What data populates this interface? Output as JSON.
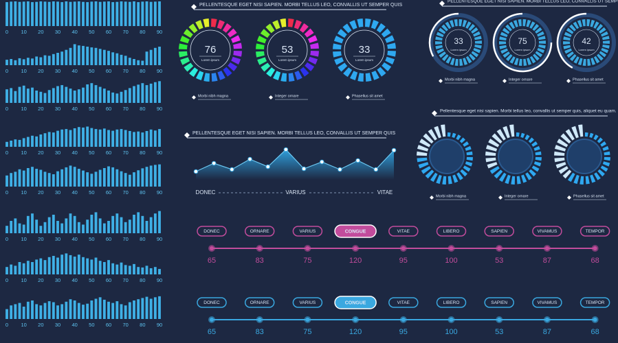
{
  "bar_charts": {
    "color": "#3fb0e6",
    "xlim": [
      0,
      90
    ],
    "ylim": [
      0,
      100
    ],
    "xticks": [
      0,
      10,
      20,
      30,
      40,
      50,
      60,
      70,
      80,
      90
    ],
    "x": [
      0,
      2.5,
      5,
      7.5,
      10,
      12.5,
      15,
      17.5,
      20,
      22.5,
      25,
      27.5,
      30,
      32.5,
      35,
      37.5,
      40,
      42.5,
      45,
      47.5,
      50,
      52.5,
      55,
      57.5,
      60,
      62.5,
      65,
      67.5,
      70,
      72.5,
      75,
      77.5,
      80,
      82.5,
      85,
      87.5,
      90
    ],
    "charts": [
      {
        "values": [
          97,
          99,
          100,
          98,
          99,
          100,
          97,
          98,
          100,
          99,
          98,
          100,
          99,
          97,
          100,
          98,
          99,
          100,
          98,
          97,
          99,
          100,
          98,
          99,
          100,
          97,
          98,
          100,
          99,
          98,
          100,
          97,
          99,
          100,
          98,
          99,
          100
        ]
      },
      {
        "values": [
          22,
          25,
          20,
          28,
          24,
          30,
          27,
          35,
          32,
          40,
          38,
          45,
          50,
          55,
          62,
          70,
          85,
          80,
          78,
          75,
          72,
          70,
          66,
          62,
          58,
          52,
          48,
          42,
          38,
          30,
          25,
          20,
          18,
          55,
          62,
          70,
          75
        ]
      },
      {
        "values": [
          55,
          60,
          48,
          65,
          70,
          58,
          62,
          50,
          45,
          40,
          52,
          60,
          68,
          72,
          65,
          58,
          50,
          55,
          62,
          75,
          80,
          72,
          65,
          58,
          50,
          42,
          38,
          45,
          52,
          60,
          68,
          74,
          80,
          72,
          78,
          84,
          88
        ]
      },
      {
        "values": [
          20,
          25,
          30,
          28,
          35,
          40,
          45,
          42,
          50,
          55,
          60,
          58,
          65,
          70,
          72,
          68,
          75,
          80,
          78,
          82,
          76,
          72,
          70,
          74,
          68,
          65,
          70,
          72,
          68,
          64,
          60,
          62,
          58,
          64,
          70,
          66,
          72
        ]
      },
      {
        "values": [
          45,
          55,
          60,
          70,
          65,
          75,
          80,
          72,
          68,
          60,
          55,
          50,
          62,
          70,
          78,
          85,
          80,
          72,
          65,
          58,
          52,
          60,
          68,
          75,
          82,
          78,
          70,
          62,
          55,
          48,
          58,
          66,
          74,
          80,
          85,
          88,
          90
        ]
      },
      {
        "values": [
          30,
          50,
          60,
          40,
          35,
          70,
          80,
          55,
          30,
          45,
          65,
          75,
          50,
          40,
          60,
          80,
          70,
          45,
          35,
          55,
          75,
          85,
          60,
          40,
          50,
          70,
          80,
          65,
          45,
          55,
          75,
          85,
          70,
          50,
          65,
          80,
          90
        ]
      },
      {
        "values": [
          30,
          40,
          35,
          50,
          45,
          55,
          50,
          60,
          65,
          58,
          70,
          75,
          68,
          80,
          85,
          78,
          72,
          80,
          70,
          65,
          60,
          68,
          55,
          50,
          58,
          45,
          40,
          48,
          38,
          35,
          42,
          30,
          28,
          35,
          25,
          30,
          22
        ]
      },
      {
        "values": [
          40,
          55,
          60,
          65,
          50,
          70,
          75,
          60,
          55,
          65,
          72,
          68,
          55,
          60,
          70,
          80,
          75,
          65,
          58,
          62,
          75,
          82,
          88,
          78,
          70,
          65,
          72,
          60,
          55,
          68,
          75,
          80,
          85,
          90,
          82,
          88,
          92
        ]
      }
    ]
  },
  "ring_gauges": {
    "title": "PELLENTESQUE EGET NISI SAPIEN. MORBI TELLUS LEO, CONVALLIS UT SEMPER QUIS",
    "items": [
      {
        "value": 76,
        "sub": "Lorem ipsum",
        "caption": "Morbi nibh magna",
        "palette": "rainbow"
      },
      {
        "value": 53,
        "sub": "Lorem ipsum",
        "caption": "Integer ornare",
        "palette": "rainbow"
      },
      {
        "value": 33,
        "sub": "Lorem ipsum",
        "caption": "Phasellus sit amet",
        "palette": "blue"
      }
    ]
  },
  "arc_gauges": {
    "title": "PELLENTESQUE EGET NISI SAPIEN. MORBI TELLUS LEO, CONVALLIS UT SEMPER QUIS",
    "items": [
      {
        "value": 33,
        "sub": "Lorem ipsum",
        "caption": "Morbi nibh magna"
      },
      {
        "value": 75,
        "sub": "Lorem ipsum",
        "caption": "Integer ornare"
      },
      {
        "value": 42,
        "sub": "Lorem ipsum",
        "caption": "Phasellus sit amet"
      }
    ]
  },
  "donut_gauges": {
    "title": "Pellentesque eget nisi sapien. Morbi tellus leo, convallis ut semper quis, aliquet eu quam.",
    "items": [
      {
        "value": 75,
        "caption": "Morbi nibh magna"
      },
      {
        "value": 65,
        "caption": "Integer ornare"
      },
      {
        "value": 60,
        "caption": "Phasellus sit amet"
      }
    ]
  },
  "area_chart": {
    "title": "PELLENTESQUE EGET NISI SAPIEN. MORBI TELLUS LEO, CONVALLIS UT SEMPER QUIS",
    "ylim": [
      0,
      50
    ],
    "values": [
      12,
      24,
      15,
      30,
      19,
      44,
      16,
      26,
      15,
      28,
      15,
      43
    ],
    "axis_labels": [
      "DONEC",
      "VARIUS",
      "VITAE"
    ]
  },
  "timeline": {
    "labels": [
      "DONEC",
      "ORNARE",
      "VARIUS",
      "CONGUE",
      "VITAE",
      "LIBERO",
      "SAPIEN",
      "VIVAMUS",
      "TEMPOR"
    ],
    "highlight": 3,
    "rows": [
      {
        "color": "#c24c9c",
        "values": [
          65,
          83,
          75,
          120,
          95,
          100,
          53,
          87,
          68
        ]
      },
      {
        "color": "#3aa8e0",
        "values": [
          65,
          83,
          75,
          120,
          95,
          100,
          53,
          87,
          68
        ]
      }
    ]
  }
}
